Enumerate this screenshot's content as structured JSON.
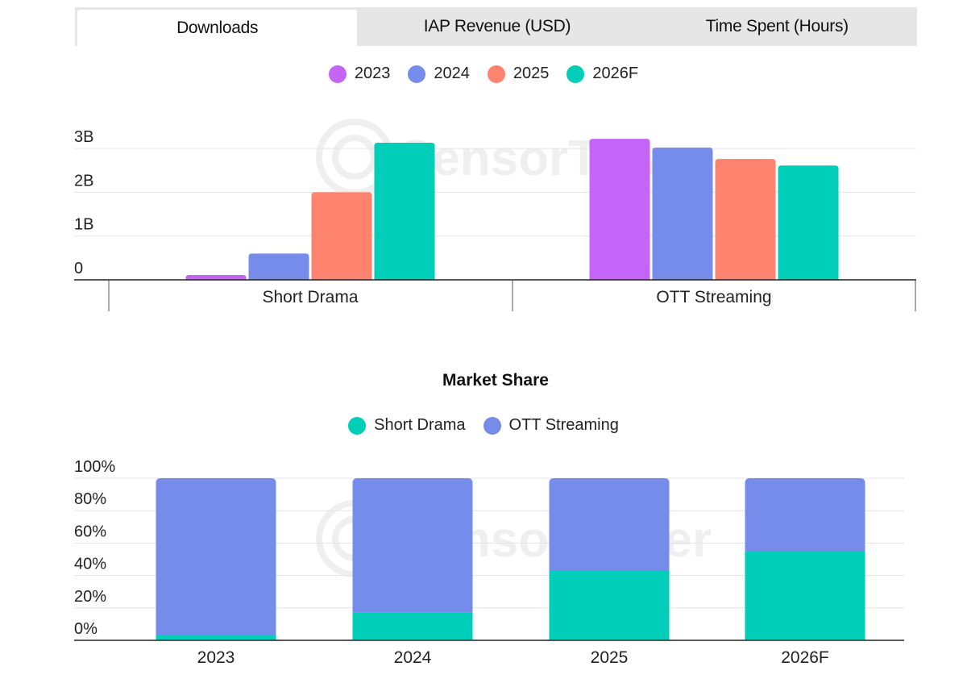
{
  "tabs": [
    {
      "label": "Downloads",
      "active": true
    },
    {
      "label": "IAP Revenue (USD)",
      "active": false
    },
    {
      "label": "Time Spent (Hours)",
      "active": false
    }
  ],
  "watermark": "SensorTower",
  "colors": {
    "2023": "#c465f8",
    "2024": "#768cea",
    "2025": "#fe836f",
    "2026F": "#00ceb8",
    "short_drama": "#00ceb8",
    "ott_streaming": "#768cea"
  },
  "chart_data": [
    {
      "type": "bar",
      "title": "Downloads",
      "categories": [
        "Short Drama",
        "OTT Streaming"
      ],
      "series": [
        {
          "name": "2023",
          "values": [
            0.11,
            3.22
          ]
        },
        {
          "name": "2024",
          "values": [
            0.6,
            3.02
          ]
        },
        {
          "name": "2025",
          "values": [
            2.0,
            2.76
          ]
        },
        {
          "name": "2026F",
          "values": [
            3.13,
            2.61
          ]
        }
      ],
      "units": "billions",
      "yticks": [
        0,
        1,
        2,
        3
      ],
      "ytick_labels": [
        "0",
        "1B",
        "2B",
        "3B"
      ],
      "ylim": [
        0,
        3.3
      ],
      "xlabel": "",
      "ylabel": "",
      "legend": [
        "2023",
        "2024",
        "2025",
        "2026F"
      ],
      "legend_position": "top-center",
      "grid": true
    },
    {
      "type": "bar",
      "stacked": true,
      "title": "Market Share",
      "categories": [
        "2023",
        "2024",
        "2025",
        "2026F"
      ],
      "series": [
        {
          "name": "Short Drama",
          "values": [
            3.5,
            17,
            42.8,
            54.7
          ]
        },
        {
          "name": "OTT Streaming",
          "values": [
            96.5,
            83,
            57.2,
            45.3
          ]
        }
      ],
      "units": "percent",
      "yticks": [
        0,
        20,
        40,
        60,
        80,
        100
      ],
      "ytick_labels": [
        "0%",
        "20%",
        "40%",
        "60%",
        "80%",
        "100%"
      ],
      "ylim": [
        0,
        100
      ],
      "xlabel": "",
      "ylabel": "",
      "legend": [
        "Short Drama",
        "OTT Streaming"
      ],
      "legend_position": "top-center",
      "grid": true
    }
  ]
}
